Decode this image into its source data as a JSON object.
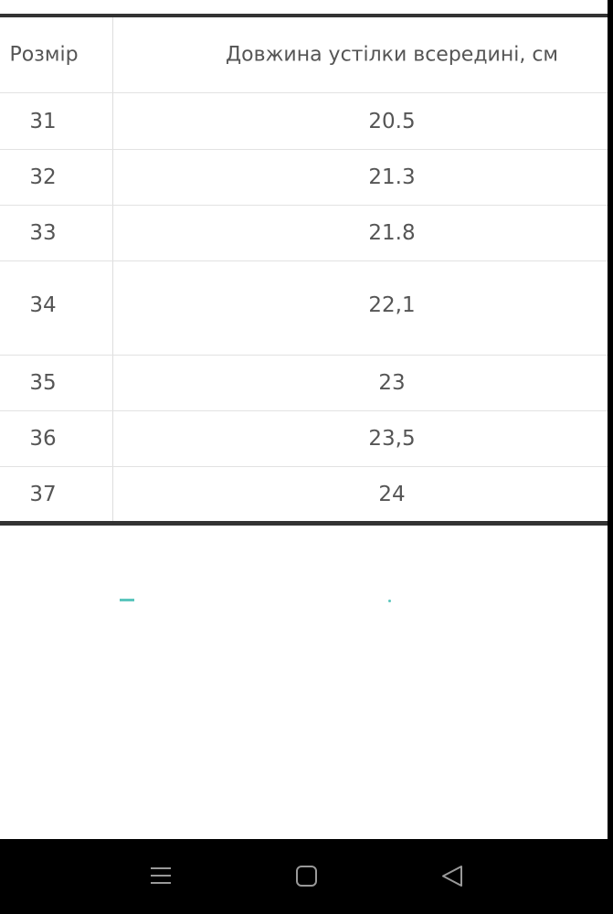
{
  "table": {
    "headers": [
      "Розмір",
      "Довжина устілки всередині, см"
    ],
    "rows": [
      [
        "31",
        "20.5"
      ],
      [
        "32",
        "21.3"
      ],
      [
        "33",
        "21.8"
      ],
      [
        "34",
        "22,1"
      ],
      [
        "35",
        "23"
      ],
      [
        "36",
        "23,5"
      ],
      [
        "37",
        "24"
      ]
    ]
  },
  "nav_bar": {
    "icons": [
      "menu-icon",
      "home-icon",
      "back-icon"
    ]
  },
  "colors": {
    "accent": "#5cc6bd",
    "nav_background": "#000000"
  }
}
